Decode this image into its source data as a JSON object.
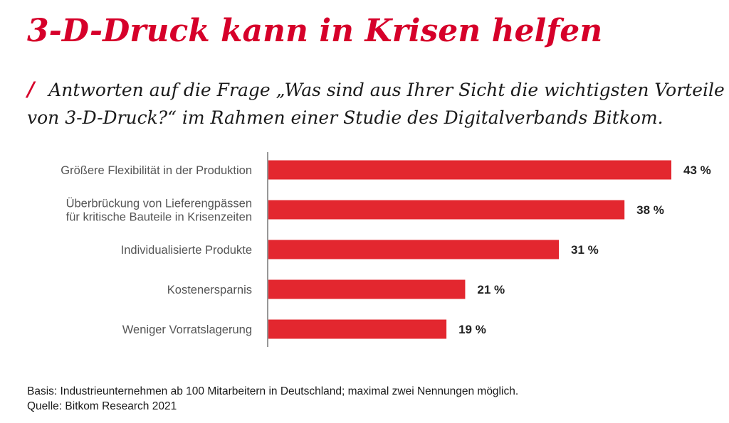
{
  "colors": {
    "accent": "#d6002a",
    "bar": "#e3272f",
    "label": "#555555",
    "value": "#222222",
    "axis": "#777777"
  },
  "chart_data": {
    "type": "bar",
    "orientation": "horizontal",
    "title": "3-D-Druck kann in Krisen helfen",
    "subtitle": "Antworten auf die Frage „Was sind aus Ihrer Sicht die wichtigsten Vorteile von 3-D-Druck?“ im Rahmen einer Studie des Digitalverbands Bitkom.",
    "subtitle_mark": "/",
    "categories": [
      [
        "Größere Flexibilität in der Produktion"
      ],
      [
        "Überbrückung von Lieferengpässen",
        "für kritische Bauteile in Krisenzeiten"
      ],
      [
        "Individualisierte Produkte"
      ],
      [
        "Kostenersparnis"
      ],
      [
        "Weniger Vorratslagerung"
      ]
    ],
    "values": [
      43,
      38,
      31,
      21,
      19
    ],
    "value_labels": [
      "43 %",
      "38 %",
      "31 %",
      "21 %",
      "19 %"
    ],
    "unit": "%",
    "xlim": [
      0,
      43
    ],
    "grid": false
  },
  "footer": {
    "basis": "Basis: Industrieunternehmen ab 100 Mitarbeitern in Deutschland; maximal zwei Nennungen möglich.",
    "source": "Quelle: Bitkom Research 2021"
  }
}
